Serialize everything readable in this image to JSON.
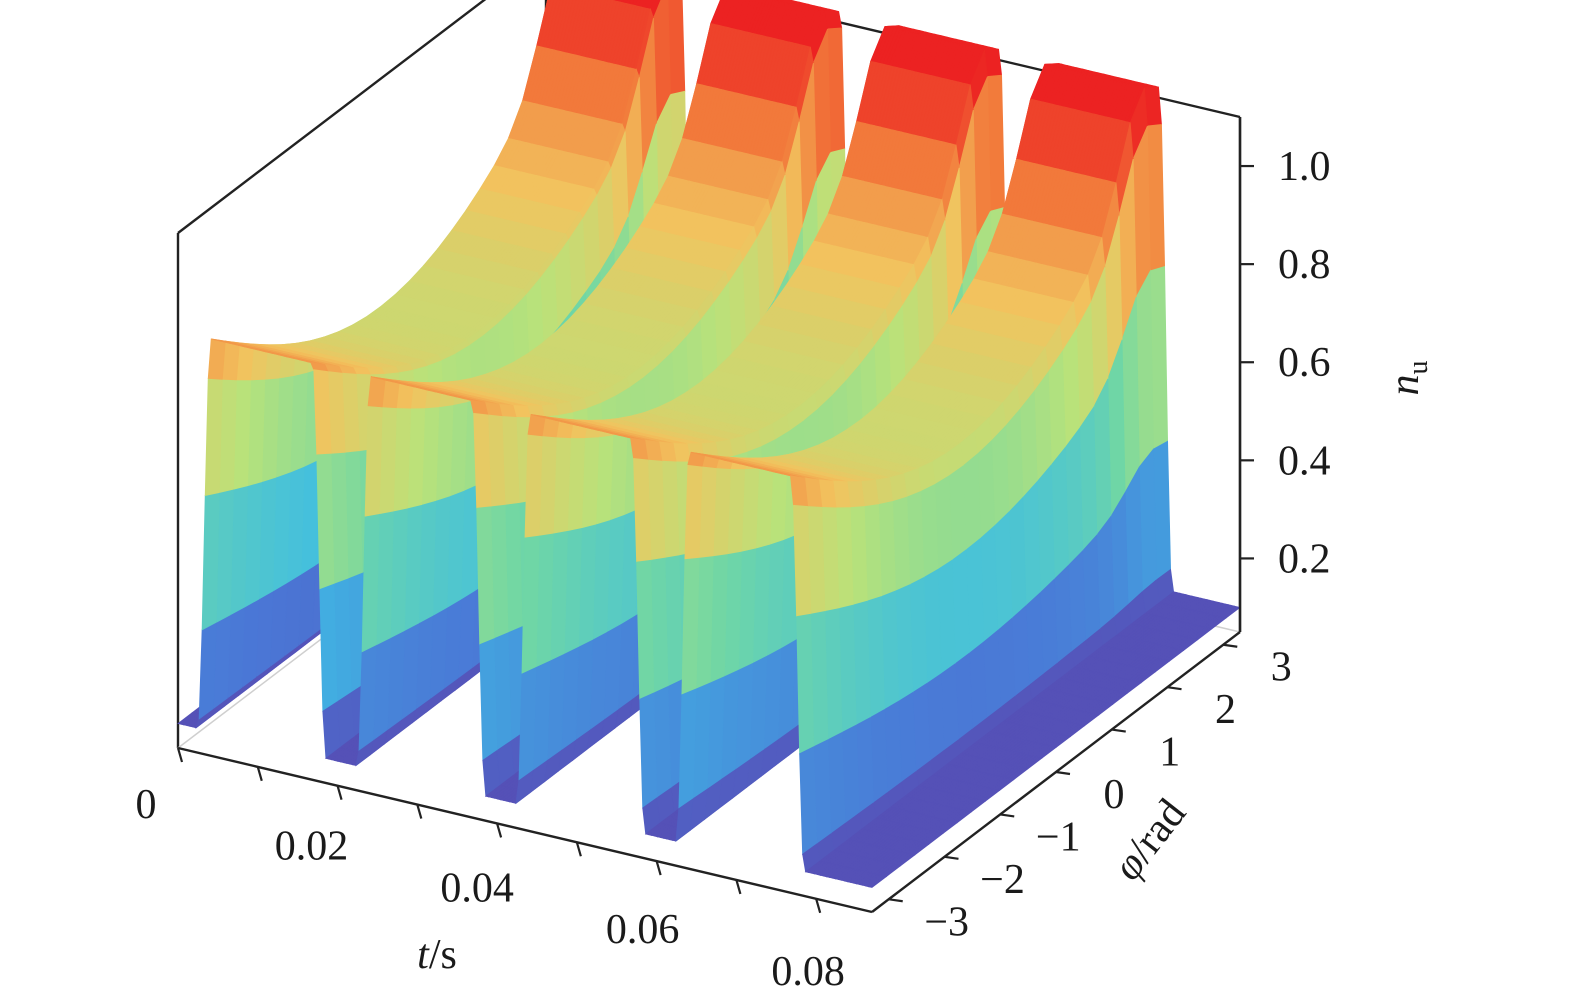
{
  "chart_data": {
    "type": "surface",
    "x_label": {
      "var": "t",
      "unit": "/s"
    },
    "y_label": {
      "var": "φ",
      "unit": "/rad"
    },
    "z_label": {
      "var": "n",
      "sub": "u"
    },
    "x_ticks": [
      "0",
      "0.02",
      "0.04",
      "0.06",
      "0.08"
    ],
    "y_ticks": [
      "−3",
      "−2",
      "−1",
      "0",
      "1",
      "2",
      "3"
    ],
    "z_ticks": [
      "0.2",
      "0.4",
      "0.6",
      "0.8",
      "1.0"
    ],
    "x_range": [
      0,
      0.087
    ],
    "y_range": [
      -3.3,
      3.3
    ],
    "z_range": [
      0.05,
      1.1
    ],
    "pulses": [
      {
        "t_start": 0.0025,
        "t_end": 0.0185,
        "peak_low_phi": 0.9,
        "peak_high_phi": 1.0
      },
      {
        "t_start": 0.0225,
        "t_end": 0.0385,
        "peak_low_phi": 0.9,
        "peak_high_phi": 1.0
      },
      {
        "t_start": 0.0425,
        "t_end": 0.0585,
        "peak_low_phi": 0.9,
        "peak_high_phi": 1.0
      },
      {
        "t_start": 0.0625,
        "t_end": 0.0785,
        "peak_low_phi": 0.9,
        "peak_high_phi": 1.0
      }
    ],
    "floor_value": 0.1,
    "colormap": "rainbow",
    "colormap_stops": [
      "#5b3ea8",
      "#4a78d6",
      "#3fbde4",
      "#6fd6a6",
      "#b9e27a",
      "#f2c35e",
      "#f2783a",
      "#ec2222"
    ],
    "grid": false
  }
}
